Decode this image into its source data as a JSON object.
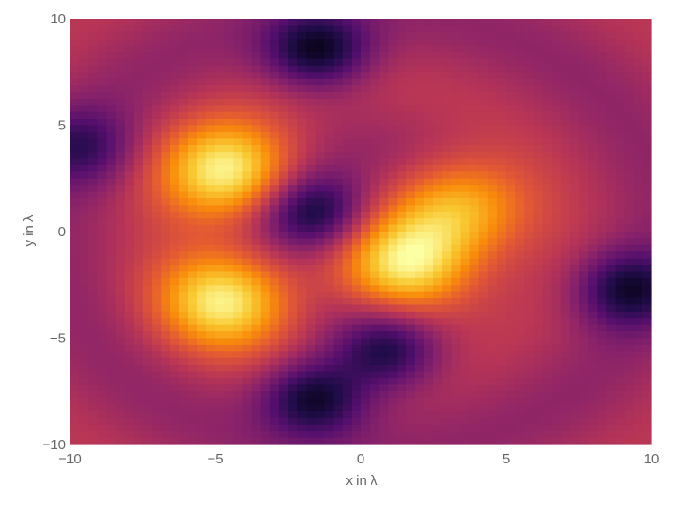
{
  "chart_data": {
    "type": "heatmap",
    "title": "",
    "xlabel": "x in λ",
    "ylabel": "y in λ",
    "xlim": [
      -10,
      10
    ],
    "ylim": [
      -10,
      10
    ],
    "x_ticks": [
      -10,
      -5,
      0,
      5,
      10
    ],
    "y_ticks": [
      -10,
      -5,
      0,
      5,
      10
    ],
    "x_tick_labels": [
      "−10",
      "−5",
      "0",
      "5",
      "10"
    ],
    "y_tick_labels": [
      "−10",
      "−5",
      "0",
      "5",
      "10"
    ],
    "colormap": "inferno",
    "colorbar": false,
    "grid": false,
    "legend": "none",
    "features": [
      {
        "kind": "max",
        "x": -4.5,
        "y": 2.8,
        "level": 0.97
      },
      {
        "kind": "max",
        "x": -4.6,
        "y": -3.2,
        "level": 0.95
      },
      {
        "kind": "max",
        "x": 1.6,
        "y": -1.7,
        "level": 0.96
      },
      {
        "kind": "max",
        "x": 3.4,
        "y": 1.1,
        "level": 0.85
      },
      {
        "kind": "min",
        "x": -1.5,
        "y": 8.5,
        "level": 0.05
      },
      {
        "kind": "min",
        "x": -1.6,
        "y": -7.8,
        "level": 0.05
      },
      {
        "kind": "min",
        "x": 9.2,
        "y": -2.7,
        "level": 0.1
      },
      {
        "kind": "min",
        "x": -9.7,
        "y": 4.0,
        "level": 0.2
      },
      {
        "kind": "min",
        "x": -1.6,
        "y": 0.9,
        "level": 0.05
      },
      {
        "kind": "min",
        "x": 0.9,
        "y": -5.6,
        "level": 0.1
      }
    ]
  }
}
